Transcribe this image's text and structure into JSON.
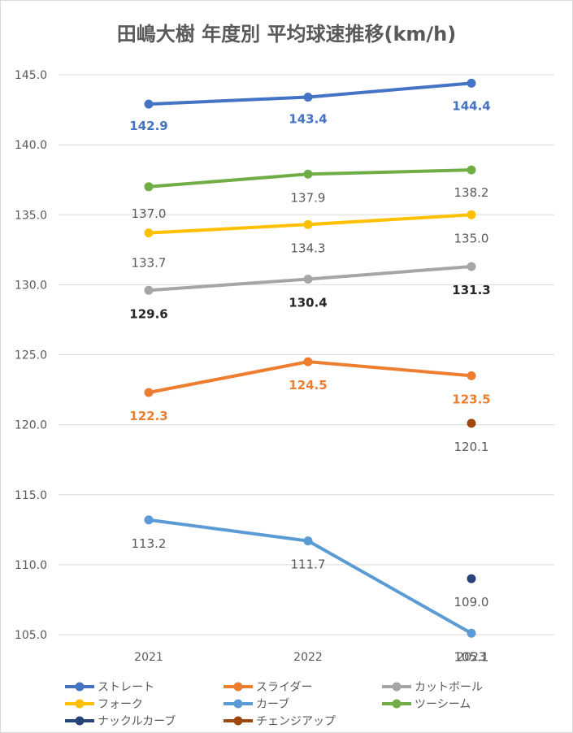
{
  "chart_data": {
    "type": "line",
    "title": "田嶋大樹 年度別 平均球速推移(km/h)",
    "categories": [
      "2021",
      "2022",
      "2023"
    ],
    "ylim": [
      105,
      145
    ],
    "yticks": [
      "105.0",
      "110.0",
      "115.0",
      "120.0",
      "125.0",
      "130.0",
      "135.0",
      "140.0",
      "145.0"
    ],
    "grid": true,
    "legend_position": "bottom",
    "series": [
      {
        "name": "ストレート",
        "color": "#4472c4",
        "values": [
          142.9,
          143.4,
          144.4
        ],
        "labels": [
          "142.9",
          "143.4",
          "144.4"
        ],
        "label_color": "#4472c4",
        "label_bold": true
      },
      {
        "name": "スライダー",
        "color": "#ed7d31",
        "values": [
          122.3,
          124.5,
          123.5
        ],
        "labels": [
          "122.3",
          "124.5",
          "123.5"
        ],
        "label_color": "#ed7d31",
        "label_bold": true
      },
      {
        "name": "カットボール",
        "color": "#a5a5a5",
        "values": [
          129.6,
          130.4,
          131.3
        ],
        "labels": [
          "129.6",
          "130.4",
          "131.3"
        ],
        "label_color": "#262626",
        "label_bold": true
      },
      {
        "name": "フォーク",
        "color": "#ffc000",
        "values": [
          133.7,
          134.3,
          135.0
        ],
        "labels": [
          "133.7",
          "134.3",
          "135.0"
        ],
        "label_color": "#595959",
        "label_bold": false
      },
      {
        "name": "カーブ",
        "color": "#5b9bd5",
        "values": [
          113.2,
          111.7,
          105.1
        ],
        "labels": [
          "113.2",
          "111.7",
          "105.1"
        ],
        "label_color": "#595959",
        "label_bold": false
      },
      {
        "name": "ツーシーム",
        "color": "#70ad47",
        "values": [
          137.0,
          137.9,
          138.2
        ],
        "labels": [
          "137.0",
          "137.9",
          "138.2"
        ],
        "label_color": "#595959",
        "label_bold": false
      },
      {
        "name": "ナックルカーブ",
        "color": "#264478",
        "values": [
          null,
          null,
          109.0
        ],
        "labels": [
          "",
          "",
          "109.0"
        ],
        "label_color": "#595959",
        "label_bold": false
      },
      {
        "name": "チェンジアップ",
        "color": "#9e480e",
        "values": [
          null,
          null,
          120.1
        ],
        "labels": [
          "",
          "",
          "120.1"
        ],
        "label_color": "#595959",
        "label_bold": false
      }
    ]
  }
}
